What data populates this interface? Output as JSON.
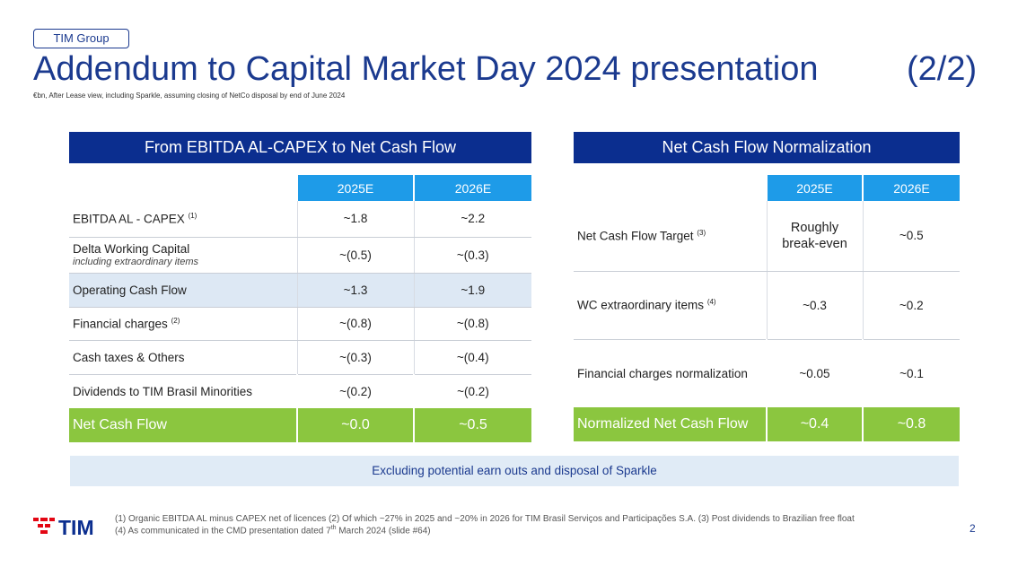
{
  "header": {
    "tag": "TIM Group",
    "title": "Addendum to Capital Market Day 2024 presentation",
    "part": "(2/2)",
    "subtitle": "€bn, After Lease view, including Sparkle, assuming closing of NetCo disposal by end of June 2024"
  },
  "left": {
    "title": "From EBITDA AL-CAPEX to Net Cash Flow",
    "columns": [
      "2025E",
      "2026E"
    ],
    "rows": [
      {
        "label": "EBITDA AL - CAPEX",
        "sup": "(1)",
        "sub": "",
        "v1": "~1.8",
        "v2": "~2.2"
      },
      {
        "label": "Delta Working Capital",
        "sup": "",
        "sub": "including extraordinary items",
        "v1": "~(0.5)",
        "v2": "~(0.3)"
      },
      {
        "label": "Operating Cash Flow",
        "sup": "",
        "sub": "",
        "v1": "~1.3",
        "v2": "~1.9"
      },
      {
        "label": "Financial charges",
        "sup": "(2)",
        "sub": "",
        "v1": "~(0.8)",
        "v2": "~(0.8)"
      },
      {
        "label": "Cash taxes & Others",
        "sup": "",
        "sub": "",
        "v1": "~(0.3)",
        "v2": "~(0.4)"
      },
      {
        "label": "Dividends to TIM Brasil Minorities",
        "sup": "",
        "sub": "",
        "v1": "~(0.2)",
        "v2": "~(0.2)"
      }
    ],
    "total": {
      "label": "Net Cash Flow",
      "v1": "~0.0",
      "v2": "~0.5"
    }
  },
  "right": {
    "title": "Net Cash Flow Normalization",
    "columns": [
      "2025E",
      "2026E"
    ],
    "rows": [
      {
        "label": "Net Cash Flow Target",
        "sup": "(3)",
        "v1": "Roughly break-even",
        "v2": "~0.5"
      },
      {
        "label": "WC extraordinary items",
        "sup": "(4)",
        "v1": "~0.3",
        "v2": "~0.2"
      },
      {
        "label": "Financial charges normalization",
        "sup": "",
        "v1": "~0.05",
        "v2": "~0.1"
      }
    ],
    "total": {
      "label": "Normalized Net Cash Flow",
      "v1": "~0.4",
      "v2": "~0.8"
    }
  },
  "banner": "Excluding potential earn outs and disposal of Sparkle",
  "footer": {
    "line1": "(1) Organic EBITDA AL minus CAPEX net of licences        (2) Of which ~27% in 2025 and ~20% in 2026 for TIM Brasil Serviços and Participações S.A.        (3) Post dividends to Brazilian free float",
    "line2a": "(4) As communicated in the CMD presentation dated 7",
    "line2sup": "th",
    "line2b": " March 2024 (slide #64)",
    "page": "2"
  },
  "logo_text": "TIM",
  "colors": {
    "navy": "#0b2e8f",
    "blue": "#1e9be8",
    "green": "#8bc63f",
    "tim_red": "#e30613",
    "tim_blue": "#0b2e8f"
  }
}
